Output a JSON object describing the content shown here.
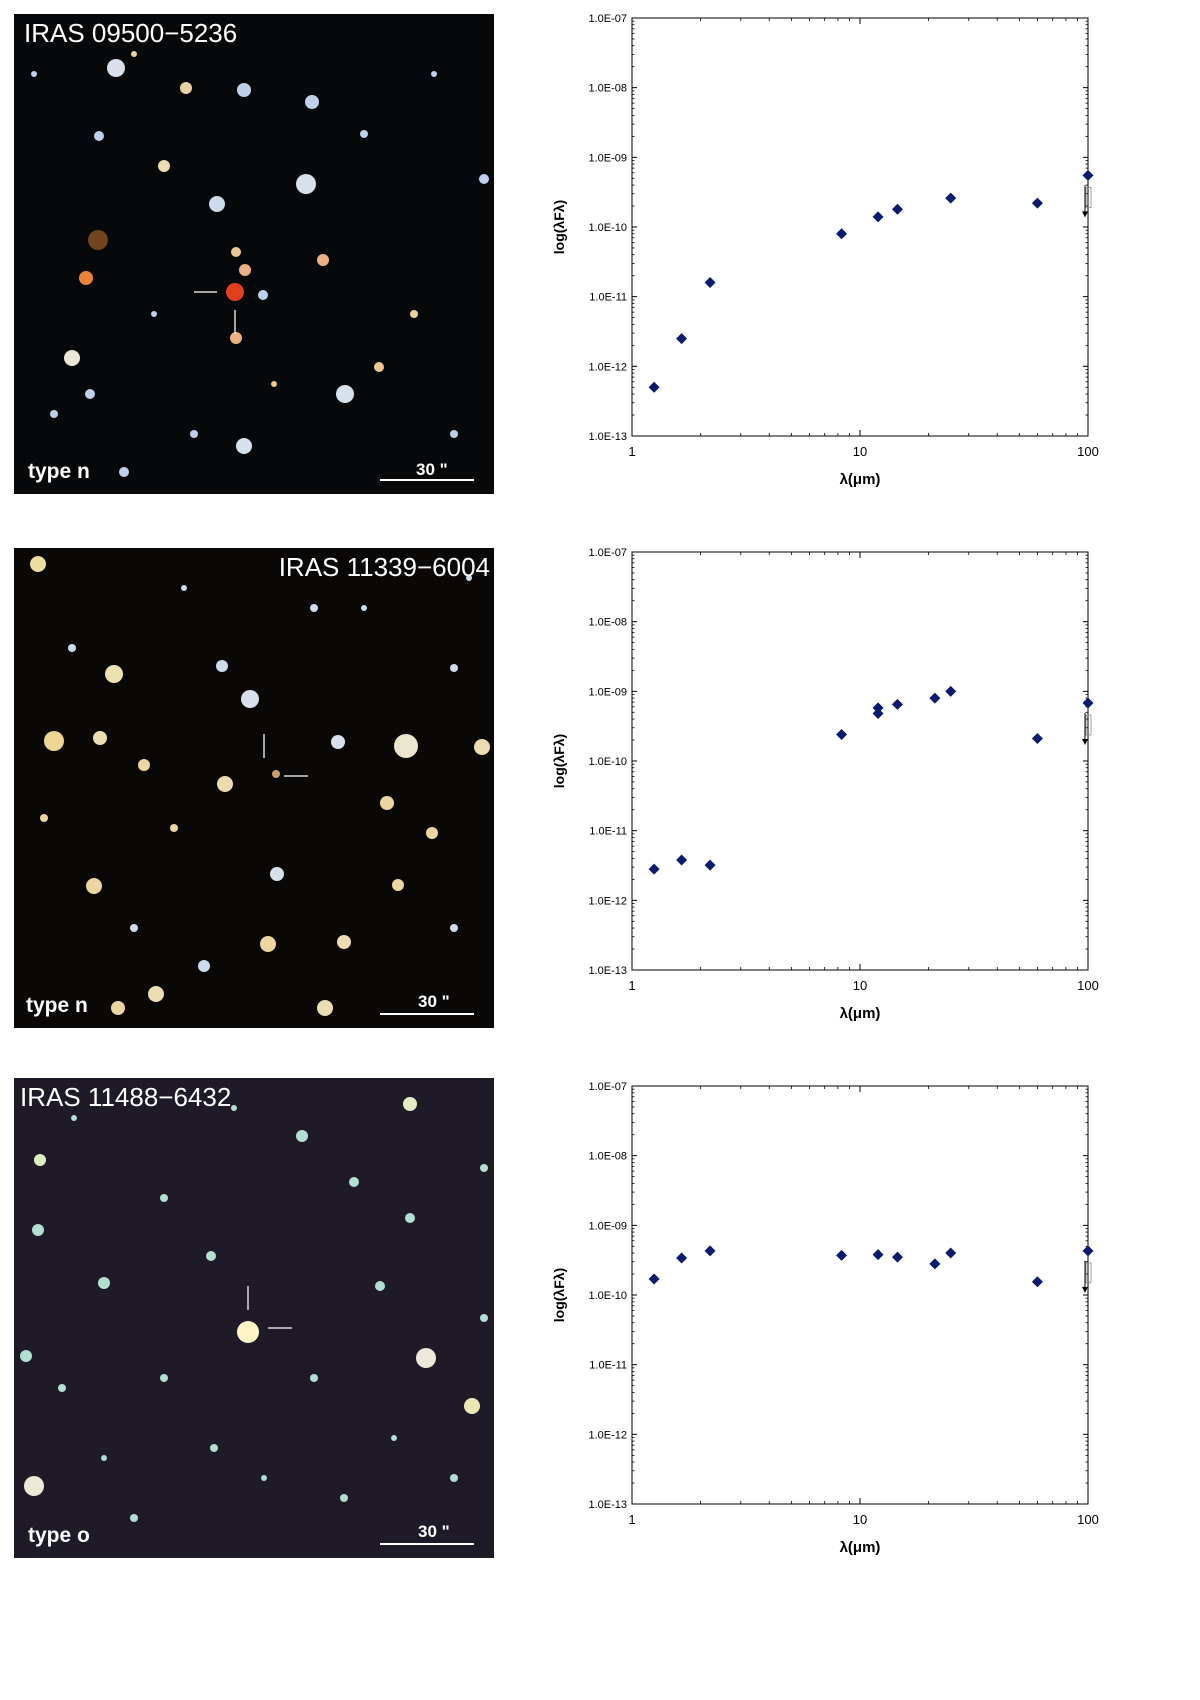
{
  "images": [
    {
      "title": "IRAS 09500−5236",
      "type_label": "type n",
      "scale_label": "30 \"",
      "background": "#06080a",
      "target_color": "#e0401c"
    },
    {
      "title": "IRAS 11339−6004",
      "type_label": "type n",
      "scale_label": "30 \"",
      "background": "#0a0806",
      "target_color": "#c8a070"
    },
    {
      "title": "IRAS 11488−6432",
      "type_label": "type o",
      "scale_label": "30 \"",
      "background": "#1e1a28",
      "target_color": "#fff4c8"
    }
  ],
  "chart_data": [
    {
      "type": "scatter",
      "xlabel": "λ(μm)",
      "ylabel": "log(λFλ)",
      "xscale": "log",
      "yscale": "log",
      "xlim": [
        1,
        100
      ],
      "ylim": [
        1e-13,
        1e-07
      ],
      "x_ticks": [
        "1",
        "10",
        "100"
      ],
      "y_ticks": [
        "1.0E-13",
        "1.0E-12",
        "1.0E-11",
        "1.0E-10",
        "1.0E-09",
        "1.0E-08",
        "1.0E-07"
      ],
      "marker_color": "#0a1a6e",
      "series": [
        {
          "x": [
            1.25,
            1.65,
            2.2,
            8.3,
            12,
            14.6,
            25,
            60,
            100
          ],
          "y": [
            5e-13,
            2.5e-12,
            1.6e-11,
            8e-11,
            1.4e-10,
            1.8e-10,
            2.6e-10,
            2.2e-10,
            5.5e-10
          ]
        }
      ],
      "upper_limit": {
        "x": 100,
        "y": 5.5e-10
      }
    },
    {
      "type": "scatter",
      "xlabel": "λ(μm)",
      "ylabel": "log(λFλ)",
      "xscale": "log",
      "yscale": "log",
      "xlim": [
        1,
        100
      ],
      "ylim": [
        1e-13,
        1e-07
      ],
      "x_ticks": [
        "1",
        "10",
        "100"
      ],
      "y_ticks": [
        "1.0E-13",
        "1.0E-12",
        "1.0E-11",
        "1.0E-10",
        "1.0E-09",
        "1.0E-08",
        "1.0E-07"
      ],
      "marker_color": "#0a1a6e",
      "series": [
        {
          "x": [
            1.25,
            1.65,
            2.2,
            8.3,
            12,
            12,
            14.6,
            21.3,
            25,
            60,
            100
          ],
          "y": [
            2.8e-12,
            3.8e-12,
            3.2e-12,
            2.4e-10,
            4.8e-10,
            5.8e-10,
            6.5e-10,
            8e-10,
            1e-09,
            2.1e-10,
            6.8e-10
          ]
        }
      ],
      "upper_limit": {
        "x": 100,
        "y": 6.8e-10
      }
    },
    {
      "type": "scatter",
      "xlabel": "λ(μm)",
      "ylabel": "log(λFλ)",
      "xscale": "log",
      "yscale": "log",
      "xlim": [
        1,
        100
      ],
      "ylim": [
        1e-13,
        1e-07
      ],
      "x_ticks": [
        "1",
        "10",
        "100"
      ],
      "y_ticks": [
        "1.0E-13",
        "1.0E-12",
        "1.0E-11",
        "1.0E-10",
        "1.0E-09",
        "1.0E-08",
        "1.0E-07"
      ],
      "marker_color": "#0a1a6e",
      "series": [
        {
          "x": [
            1.25,
            1.65,
            2.2,
            8.3,
            12,
            14.6,
            21.3,
            25,
            60,
            100
          ],
          "y": [
            1.7e-10,
            3.4e-10,
            4.3e-10,
            3.7e-10,
            3.8e-10,
            3.5e-10,
            2.8e-10,
            4e-10,
            1.55e-10,
            4.3e-10
          ]
        }
      ],
      "upper_limit": {
        "x": 100,
        "y": 4.3e-10
      }
    }
  ]
}
